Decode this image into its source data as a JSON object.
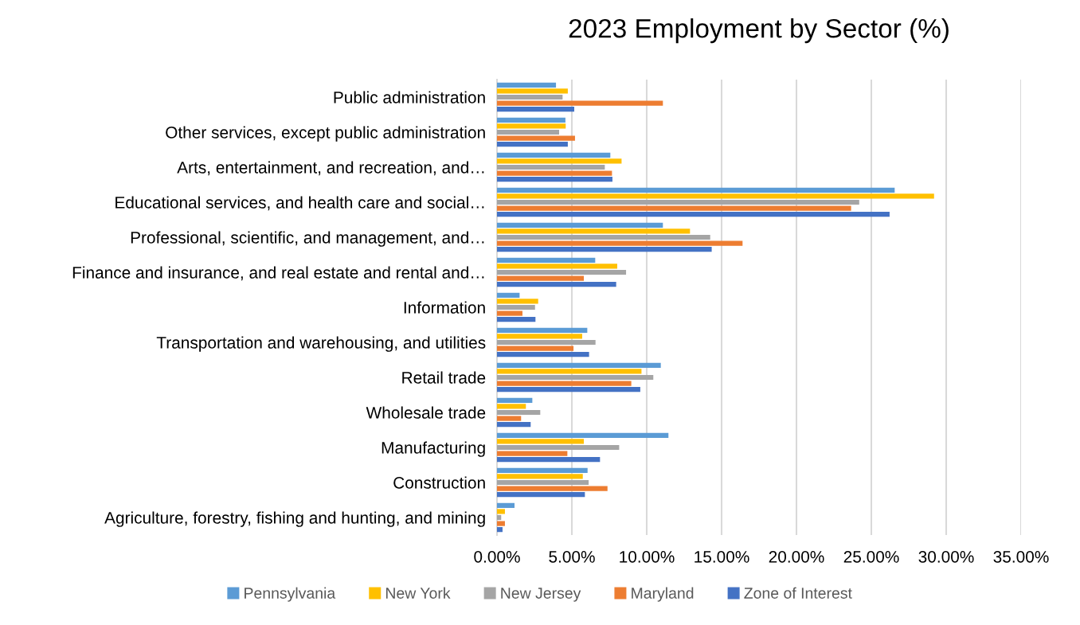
{
  "chart_data": {
    "type": "bar",
    "orientation": "horizontal",
    "title": "2023 Employment by Sector (%)",
    "categories": [
      "Public administration",
      "Other services, except public administration",
      "Arts, entertainment, and recreation, and…",
      "Educational services, and health care and social…",
      "Professional, scientific, and management, and…",
      "Finance and insurance, and real estate and rental and…",
      "Information",
      "Transportation and warehousing, and utilities",
      "Retail trade",
      "Wholesale trade",
      "Manufacturing",
      "Construction",
      "Agriculture, forestry, fishing and hunting, and mining"
    ],
    "series": [
      {
        "name": "Pennsylvania",
        "color": "#5b9bd5",
        "values": [
          3.94,
          4.57,
          7.57,
          26.56,
          11.08,
          6.56,
          1.51,
          6.03,
          10.94,
          2.36,
          11.45,
          6.05,
          1.17
        ]
      },
      {
        "name": "New York",
        "color": "#ffc000",
        "values": [
          4.73,
          4.59,
          8.32,
          29.19,
          12.89,
          8.03,
          2.75,
          5.69,
          9.65,
          1.93,
          5.8,
          5.73,
          0.53
        ]
      },
      {
        "name": "New Jersey",
        "color": "#a5a5a5",
        "values": [
          4.38,
          4.15,
          7.2,
          24.19,
          14.24,
          8.62,
          2.54,
          6.58,
          10.44,
          2.89,
          8.16,
          6.12,
          0.28
        ]
      },
      {
        "name": "Maryland",
        "color": "#ed7d31",
        "values": [
          11.08,
          5.21,
          7.68,
          23.65,
          16.4,
          5.8,
          1.7,
          5.11,
          8.97,
          1.61,
          4.7,
          7.38,
          0.53
        ]
      },
      {
        "name": "Zone of Interest",
        "color": "#4472c4",
        "values": [
          5.16,
          4.73,
          7.71,
          26.22,
          14.34,
          7.96,
          2.57,
          6.15,
          9.57,
          2.25,
          6.88,
          5.87,
          0.37
        ]
      }
    ],
    "xlim": [
      0,
      35
    ],
    "xticks": [
      {
        "value": 0,
        "label": "0.00%"
      },
      {
        "value": 5,
        "label": "5.00%"
      },
      {
        "value": 10,
        "label": "10.00%"
      },
      {
        "value": 15,
        "label": "15.00%"
      },
      {
        "value": 20,
        "label": "20.00%"
      },
      {
        "value": 25,
        "label": "25.00%"
      },
      {
        "value": 30,
        "label": "30.00%"
      },
      {
        "value": 35,
        "label": "35.00%"
      }
    ],
    "grid": "x",
    "legend": "bottom"
  }
}
